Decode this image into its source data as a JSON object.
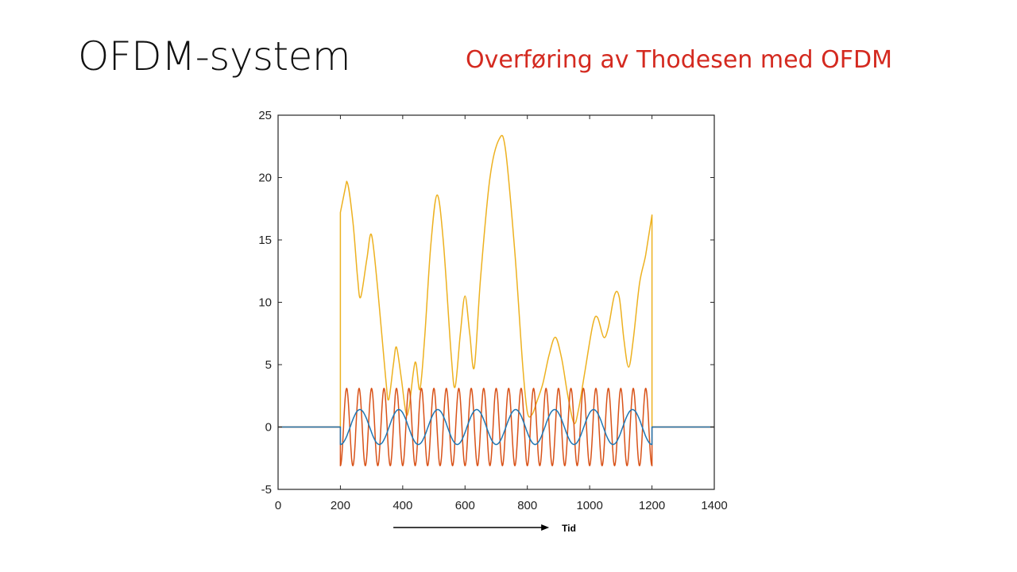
{
  "slide": {
    "title": "OFDM-system",
    "subtitle": "Overføring av Thodesen med OFDM"
  },
  "colors": {
    "title": "#111111",
    "subtitle": "#d42a20",
    "series_blue": "#1f77b4",
    "series_orange": "#d95319",
    "series_yellow": "#edb120"
  },
  "chart_data": {
    "type": "line",
    "xlim": [
      0,
      1400
    ],
    "ylim": [
      -5,
      25
    ],
    "xticks": [
      0,
      200,
      400,
      600,
      800,
      1000,
      1200,
      1400
    ],
    "yticks": [
      -5,
      0,
      5,
      10,
      15,
      20,
      25
    ],
    "grid": false,
    "annotation": {
      "label": "Tid",
      "arrow_from": 370,
      "arrow_to": 870
    },
    "series": [
      {
        "color": "#edb120",
        "points": [
          [
            0,
            0
          ],
          [
            200,
            0
          ],
          [
            200,
            17.2
          ],
          [
            220,
            19.7
          ],
          [
            240,
            16.5
          ],
          [
            255,
            12.0
          ],
          [
            265,
            10.4
          ],
          [
            285,
            13.5
          ],
          [
            300,
            15.4
          ],
          [
            320,
            11.0
          ],
          [
            345,
            4.0
          ],
          [
            355,
            2.2
          ],
          [
            370,
            5.0
          ],
          [
            380,
            6.4
          ],
          [
            395,
            4.0
          ],
          [
            410,
            1.2
          ],
          [
            420,
            1.5
          ],
          [
            440,
            5.2
          ],
          [
            455,
            3.0
          ],
          [
            470,
            7.0
          ],
          [
            490,
            14.5
          ],
          [
            510,
            18.6
          ],
          [
            530,
            15.0
          ],
          [
            555,
            6.0
          ],
          [
            568,
            3.2
          ],
          [
            585,
            7.5
          ],
          [
            600,
            10.5
          ],
          [
            615,
            7.5
          ],
          [
            630,
            4.8
          ],
          [
            650,
            12.0
          ],
          [
            680,
            20.0
          ],
          [
            710,
            23.1
          ],
          [
            730,
            22.2
          ],
          [
            760,
            14.0
          ],
          [
            785,
            5.0
          ],
          [
            800,
            1.2
          ],
          [
            815,
            1.0
          ],
          [
            830,
            2.0
          ],
          [
            850,
            3.5
          ],
          [
            870,
            5.8
          ],
          [
            890,
            7.2
          ],
          [
            910,
            5.5
          ],
          [
            930,
            2.5
          ],
          [
            950,
            0.3
          ],
          [
            965,
            1.5
          ],
          [
            985,
            4.5
          ],
          [
            1010,
            8.2
          ],
          [
            1025,
            8.8
          ],
          [
            1045,
            7.2
          ],
          [
            1060,
            8.0
          ],
          [
            1080,
            10.6
          ],
          [
            1095,
            10.4
          ],
          [
            1110,
            7.0
          ],
          [
            1125,
            4.8
          ],
          [
            1140,
            7.0
          ],
          [
            1160,
            11.5
          ],
          [
            1180,
            13.8
          ],
          [
            1200,
            17.0
          ],
          [
            1200,
            0
          ],
          [
            1400,
            0
          ]
        ]
      },
      {
        "color": "#d95319",
        "function": "sinusoid",
        "amplitude": 3.1,
        "period": 40,
        "start": 200,
        "end": 1200,
        "flat_value": 0
      },
      {
        "color": "#1f77b4",
        "function": "sinusoid",
        "amplitude": 1.4,
        "period": 125,
        "start": 200,
        "end": 1200,
        "flat_value": 0
      }
    ]
  }
}
